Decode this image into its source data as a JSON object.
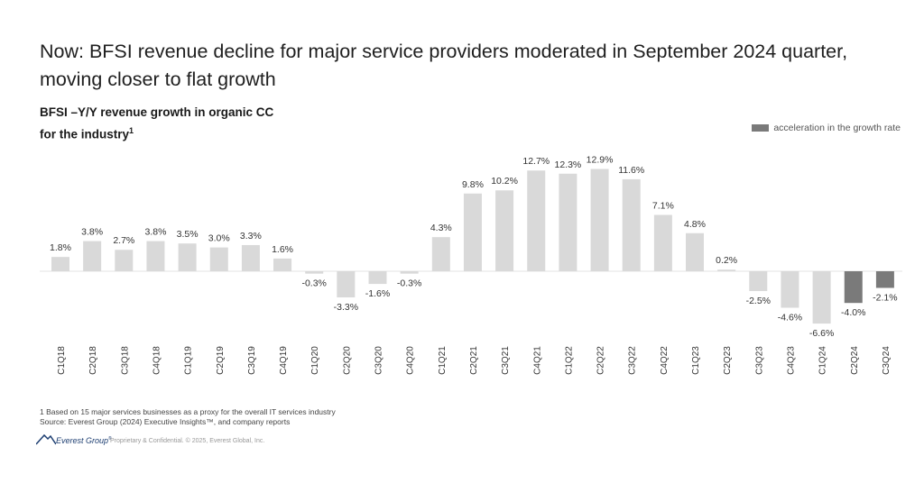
{
  "title": "Now: BFSI revenue decline for major service providers moderated in September 2024 quarter, moving closer to flat growth",
  "subtitle_main": "BFSI –Y/Y revenue growth in organic CC for the industry",
  "subtitle_sup": "1",
  "legend": {
    "label": "acceleration in the growth rate",
    "color": "#7a7a7a"
  },
  "colors": {
    "bar": "#d9d9d9",
    "highlight": "#7a7a7a",
    "axis": "#e3e3e3"
  },
  "chart_data": {
    "type": "bar",
    "title": "BFSI –Y/Y revenue growth in organic CC for the industry",
    "categories": [
      "C1Q18",
      "C2Q18",
      "C3Q18",
      "C4Q18",
      "C1Q19",
      "C2Q19",
      "C3Q19",
      "C4Q19",
      "C1Q20",
      "C2Q20",
      "C3Q20",
      "C4Q20",
      "C1Q21",
      "C2Q21",
      "C3Q21",
      "C4Q21",
      "C1Q22",
      "C2Q22",
      "C3Q22",
      "C4Q22",
      "C1Q23",
      "C2Q23",
      "C3Q23",
      "C4Q23",
      "C1Q24",
      "C2Q24",
      "C3Q24"
    ],
    "values": [
      1.8,
      3.8,
      2.7,
      3.8,
      3.5,
      3.0,
      3.3,
      1.6,
      -0.3,
      -3.3,
      -1.6,
      -0.3,
      4.3,
      9.8,
      10.2,
      12.7,
      12.3,
      12.9,
      11.6,
      7.1,
      4.8,
      0.2,
      -2.5,
      -4.6,
      -6.6,
      -4.0,
      -2.1
    ],
    "labels": [
      "1.8%",
      "3.8%",
      "2.7%",
      "3.8%",
      "3.5%",
      "3.0%",
      "3.3%",
      "1.6%",
      "-0.3%",
      "-3.3%",
      "-1.6%",
      "-0.3%",
      "4.3%",
      "9.8%",
      "10.2%",
      "12.7%",
      "12.3%",
      "12.9%",
      "11.6%",
      "7.1%",
      "4.8%",
      "0.2%",
      "-2.5%",
      "-4.6%",
      "-6.6%",
      "-4.0%",
      "-2.1%"
    ],
    "highlighted": [
      "C2Q24",
      "C3Q24"
    ],
    "unit": "%",
    "ylim": [
      -7,
      14
    ],
    "xlabel": "",
    "ylabel": "",
    "grid": false,
    "legend_position": "top-right"
  },
  "footnotes": {
    "line1": "1 Based on 15 major services businesses as a proxy for the overall IT services industry",
    "line2": "Source: Everest Group (2024) Executive Insights™, and company reports"
  },
  "logo_text": "Everest Group",
  "logo_mark": "®",
  "confidential": "Proprietary & Confidential. © 2025, Everest Global, Inc."
}
